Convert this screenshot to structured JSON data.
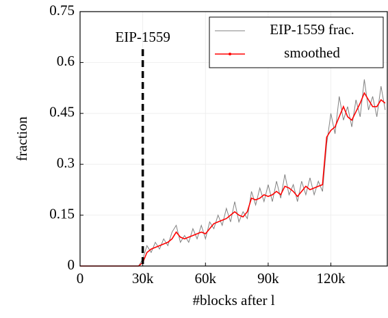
{
  "chart_data": {
    "type": "line",
    "xlabel": "#blocks after l",
    "ylabel": "fraction",
    "annotation": {
      "text": "EIP-1559",
      "x": 30000
    },
    "x": [
      0,
      2000,
      4000,
      6000,
      8000,
      10000,
      12000,
      14000,
      16000,
      18000,
      20000,
      22000,
      24000,
      26000,
      28000,
      30000,
      32000,
      34000,
      36000,
      38000,
      40000,
      42000,
      44000,
      46000,
      48000,
      50000,
      52000,
      54000,
      56000,
      58000,
      60000,
      62000,
      64000,
      66000,
      68000,
      70000,
      72000,
      74000,
      76000,
      78000,
      80000,
      82000,
      84000,
      86000,
      88000,
      90000,
      92000,
      94000,
      96000,
      98000,
      100000,
      102000,
      104000,
      106000,
      108000,
      110000,
      112000,
      114000,
      116000,
      118000,
      120000,
      122000,
      124000,
      126000,
      128000,
      130000,
      132000,
      134000,
      136000,
      138000,
      140000,
      142000,
      144000,
      146000
    ],
    "series": [
      {
        "name": "EIP-1559 frac.",
        "color": "#808080",
        "values": [
          0,
          0,
          0,
          0,
          0,
          0,
          0,
          0,
          0,
          0,
          0,
          0,
          0,
          0,
          0,
          0.02,
          0.06,
          0.04,
          0.07,
          0.05,
          0.08,
          0.06,
          0.1,
          0.12,
          0.07,
          0.09,
          0.07,
          0.11,
          0.08,
          0.12,
          0.08,
          0.13,
          0.11,
          0.15,
          0.12,
          0.17,
          0.13,
          0.19,
          0.13,
          0.16,
          0.14,
          0.22,
          0.18,
          0.23,
          0.19,
          0.24,
          0.19,
          0.25,
          0.2,
          0.27,
          0.21,
          0.24,
          0.19,
          0.25,
          0.21,
          0.26,
          0.21,
          0.25,
          0.22,
          0.36,
          0.45,
          0.39,
          0.5,
          0.43,
          0.47,
          0.41,
          0.49,
          0.44,
          0.55,
          0.46,
          0.5,
          0.44,
          0.53,
          0.46
        ]
      },
      {
        "name": "smoothed",
        "color": "#ff0000",
        "values": [
          0,
          0,
          0,
          0,
          0,
          0,
          0,
          0,
          0,
          0,
          0,
          0,
          0,
          0,
          0,
          0.01,
          0.04,
          0.05,
          0.055,
          0.06,
          0.065,
          0.07,
          0.08,
          0.1,
          0.085,
          0.08,
          0.085,
          0.09,
          0.095,
          0.1,
          0.095,
          0.11,
          0.125,
          0.13,
          0.135,
          0.14,
          0.15,
          0.16,
          0.15,
          0.145,
          0.16,
          0.2,
          0.195,
          0.2,
          0.21,
          0.205,
          0.21,
          0.22,
          0.21,
          0.235,
          0.23,
          0.22,
          0.205,
          0.22,
          0.235,
          0.225,
          0.23,
          0.235,
          0.24,
          0.38,
          0.4,
          0.41,
          0.44,
          0.47,
          0.44,
          0.43,
          0.455,
          0.48,
          0.51,
          0.49,
          0.47,
          0.47,
          0.49,
          0.48
        ]
      }
    ],
    "xlim": [
      0,
      147000
    ],
    "ylim": [
      0,
      0.75
    ],
    "xticks": [
      0,
      {
        "value": 30000,
        "label": "30k"
      },
      {
        "value": 60000,
        "label": "60k"
      },
      {
        "value": 90000,
        "label": "90k"
      },
      {
        "value": 120000,
        "label": "120k"
      }
    ],
    "yticks": [
      0,
      0.15,
      0.3,
      0.45,
      0.6,
      0.75
    ],
    "grid": true,
    "legend": "top-right"
  }
}
